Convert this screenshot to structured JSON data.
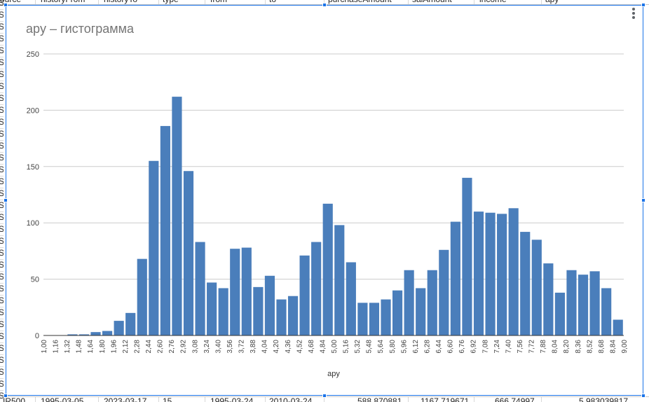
{
  "sheet": {
    "header_cells": [
      "ource",
      "historyFrom",
      "historyTo",
      "type",
      "from",
      "to",
      "purchaseAmount",
      "salAmount",
      "income",
      "apy"
    ],
    "row_prefix": "S",
    "bottom_row": [
      "IR500",
      "1995-03-05",
      "2023-03-17",
      "15",
      "1995-03-24",
      "2010-03-24",
      "588.870881",
      "1167.719671",
      "666.74997",
      "5.983039817"
    ]
  },
  "chart_data": {
    "type": "bar",
    "title": "apy – гистограмма",
    "xlabel": "apy",
    "ylabel": "",
    "ylim": [
      0,
      250
    ],
    "yticks": [
      0,
      50,
      100,
      150,
      200,
      250
    ],
    "grid": true,
    "bar_color": "#4a7ebb",
    "bin_edges": [
      "1,00",
      "1,16",
      "1,32",
      "1,48",
      "1,64",
      "1,80",
      "1,96",
      "2,12",
      "2,28",
      "2,44",
      "2,60",
      "2,76",
      "2,92",
      "3,08",
      "3,24",
      "3,40",
      "3,56",
      "3,72",
      "3,88",
      "4,04",
      "4,20",
      "4,36",
      "4,52",
      "4,68",
      "4,84",
      "5,00",
      "5,16",
      "5,32",
      "5,48",
      "5,64",
      "5,80",
      "5,96",
      "6,12",
      "6,28",
      "6,44",
      "6,60",
      "6,76",
      "6,92",
      "7,08",
      "7,24",
      "7,40",
      "7,56",
      "7,72",
      "7,88",
      "8,04",
      "8,20",
      "8,36",
      "8,52",
      "8,68",
      "8,84",
      "9,00"
    ],
    "values": [
      0,
      0,
      1,
      1,
      3,
      4,
      13,
      20,
      68,
      155,
      186,
      212,
      146,
      83,
      47,
      42,
      77,
      78,
      43,
      53,
      32,
      35,
      71,
      83,
      117,
      98,
      65,
      29,
      29,
      32,
      40,
      58,
      42,
      58,
      76,
      101,
      140,
      110,
      109,
      108,
      113,
      92,
      85,
      64,
      38,
      58,
      54,
      57,
      42,
      14
    ]
  }
}
